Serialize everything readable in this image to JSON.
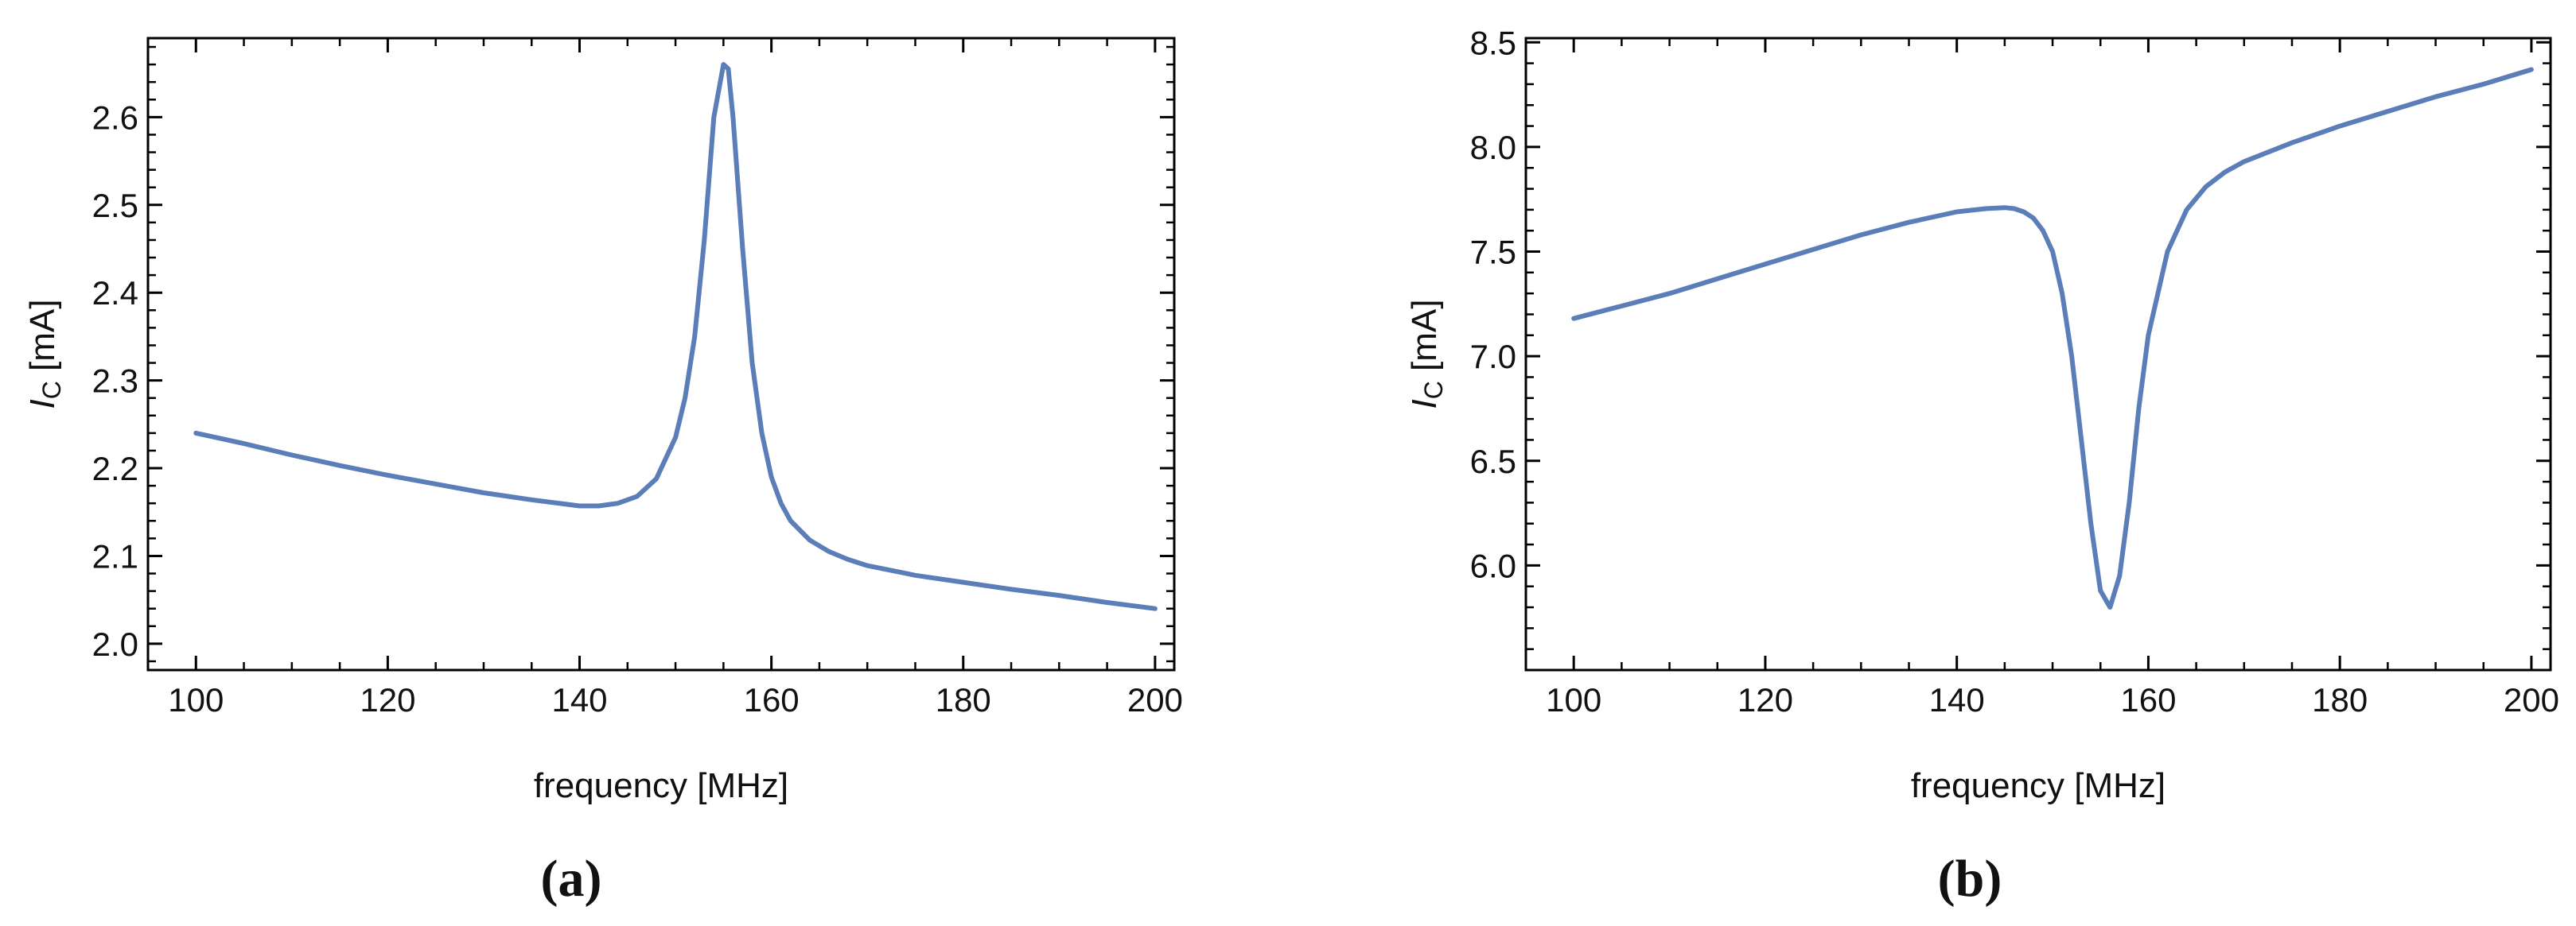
{
  "colors": {
    "series": "#5B7DB8",
    "frame": "#000000",
    "text": "#111111"
  },
  "chart_data": [
    {
      "type": "line",
      "panel_label": "(a)",
      "xlabel": "frequency [MHz]",
      "ylabel_main": "I",
      "ylabel_sub": "C",
      "ylabel_unit": " [mA]",
      "xlim": [
        95,
        202
      ],
      "ylim": [
        1.97,
        2.69
      ],
      "xticks": [
        100,
        120,
        140,
        160,
        180,
        200
      ],
      "xtick_labels": [
        "100",
        "120",
        "140",
        "160",
        "180",
        "200"
      ],
      "yticks": [
        2.0,
        2.1,
        2.2,
        2.3,
        2.4,
        2.5,
        2.6
      ],
      "ytick_labels": [
        "2.0",
        "2.1",
        "2.2",
        "2.3",
        "2.4",
        "2.5",
        "2.6"
      ],
      "grid": false,
      "series": [
        {
          "x": [
            100,
            105,
            110,
            115,
            120,
            125,
            130,
            135,
            140,
            142,
            144,
            146,
            148,
            150,
            151,
            152,
            153,
            154,
            155,
            155.5,
            156,
            157,
            158,
            159,
            160,
            161,
            162,
            164,
            166,
            168,
            170,
            175,
            180,
            185,
            190,
            195,
            200
          ],
          "y": [
            2.24,
            2.228,
            2.215,
            2.203,
            2.192,
            2.182,
            2.172,
            2.164,
            2.157,
            2.157,
            2.16,
            2.168,
            2.188,
            2.235,
            2.28,
            2.35,
            2.46,
            2.6,
            2.66,
            2.655,
            2.6,
            2.45,
            2.32,
            2.24,
            2.19,
            2.16,
            2.14,
            2.118,
            2.105,
            2.096,
            2.089,
            2.078,
            2.07,
            2.062,
            2.055,
            2.047,
            2.04
          ]
        }
      ]
    },
    {
      "type": "line",
      "panel_label": "(b)",
      "xlabel": "frequency [MHz]",
      "ylabel_main": "I",
      "ylabel_sub": "C",
      "ylabel_unit": " [mA]",
      "xlim": [
        95,
        202
      ],
      "ylim": [
        5.5,
        8.52
      ],
      "xticks": [
        100,
        120,
        140,
        160,
        180,
        200
      ],
      "xtick_labels": [
        "100",
        "120",
        "140",
        "160",
        "180",
        "200"
      ],
      "yticks": [
        6.0,
        6.5,
        7.0,
        7.5,
        8.0,
        8.5
      ],
      "ytick_labels": [
        "6.0",
        "6.5",
        "7.0",
        "7.5",
        "8.0",
        "8.5"
      ],
      "grid": false,
      "series": [
        {
          "x": [
            100,
            105,
            110,
            115,
            120,
            125,
            130,
            135,
            140,
            143,
            145,
            146,
            147,
            148,
            149,
            150,
            151,
            152,
            153,
            154,
            155,
            156,
            157,
            158,
            159,
            160,
            162,
            164,
            166,
            168,
            170,
            175,
            180,
            185,
            190,
            195,
            200
          ],
          "y": [
            7.18,
            7.24,
            7.3,
            7.37,
            7.44,
            7.51,
            7.58,
            7.64,
            7.69,
            7.705,
            7.71,
            7.705,
            7.69,
            7.66,
            7.6,
            7.5,
            7.3,
            7.0,
            6.6,
            6.2,
            5.88,
            5.8,
            5.95,
            6.3,
            6.75,
            7.1,
            7.5,
            7.7,
            7.81,
            7.88,
            7.93,
            8.02,
            8.1,
            8.17,
            8.24,
            8.3,
            8.37
          ]
        }
      ]
    }
  ]
}
